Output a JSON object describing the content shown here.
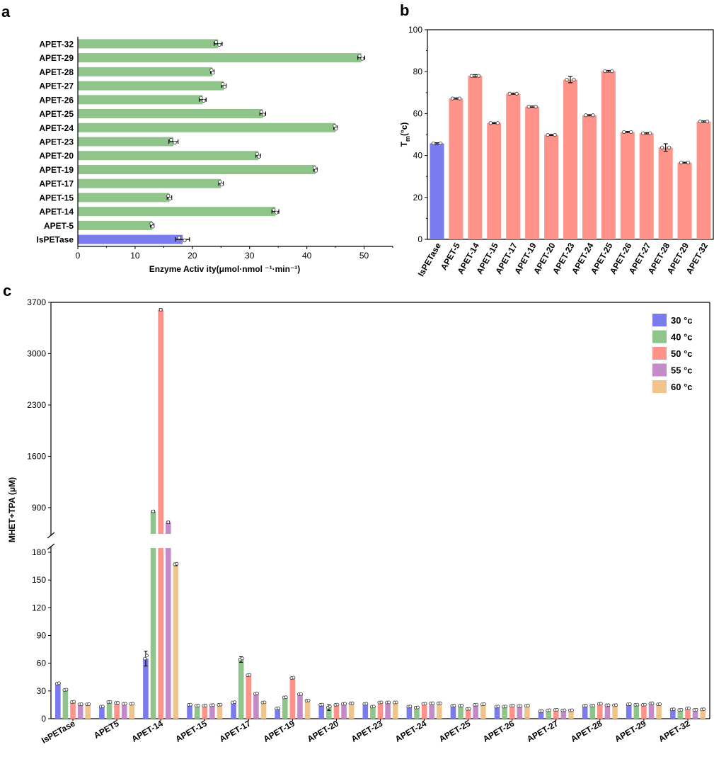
{
  "panels": {
    "a": "a",
    "b": "b",
    "c": "c"
  },
  "chart_data": [
    {
      "panel": "a",
      "type": "bar",
      "orientation": "horizontal",
      "title": "",
      "xlabel": "Enzyme Activ ity(μmol·nmol ⁻¹·min⁻¹)",
      "ylabel": "",
      "xlim": [
        0,
        55
      ],
      "xticks": [
        "0",
        "10",
        "20",
        "30",
        "40",
        "50"
      ],
      "categories": [
        "APET-32",
        "APET-29",
        "APET-28",
        "APET-27",
        "APET-26",
        "APET-25",
        "APET-24",
        "APET-23",
        "APET-20",
        "APET-19",
        "APET-17",
        "APET-15",
        "APET-14",
        "APET-5",
        "IsPETase"
      ],
      "values": [
        24.5,
        49.5,
        23.5,
        25.5,
        21.8,
        32.3,
        45.0,
        16.7,
        31.5,
        41.5,
        25.0,
        16.0,
        34.5,
        13.0,
        18.3
      ],
      "errors": [
        0.7,
        0.6,
        0.3,
        0.4,
        0.6,
        0.5,
        0.3,
        0.8,
        0.4,
        0.3,
        0.4,
        0.4,
        0.6,
        0.3,
        1.2
      ],
      "colors": [
        "#8fc48a",
        "#8fc48a",
        "#8fc48a",
        "#8fc48a",
        "#8fc48a",
        "#8fc48a",
        "#8fc48a",
        "#8fc48a",
        "#8fc48a",
        "#8fc48a",
        "#8fc48a",
        "#8fc48a",
        "#8fc48a",
        "#8fc48a",
        "#7b7bf0"
      ]
    },
    {
      "panel": "b",
      "type": "bar",
      "title": "",
      "ylabel": "T",
      "ylabel_sub": "m",
      "ylabel_unit": "(°c)",
      "ylim": [
        0,
        100
      ],
      "yticks": [
        "0",
        "20",
        "40",
        "60",
        "80",
        "100"
      ],
      "categories": [
        "IsPETase",
        "APET-5",
        "APET-14",
        "APET-15",
        "APET-17",
        "APET-19",
        "APET-20",
        "APET-23",
        "APET-24",
        "APET-25",
        "APET-26",
        "APET-27",
        "APET-28",
        "APET-29",
        "APET-32"
      ],
      "values": [
        45.8,
        67.2,
        78.0,
        55.5,
        69.5,
        63.3,
        49.8,
        76.2,
        59.2,
        80.2,
        51.2,
        50.6,
        43.8,
        36.6,
        56.2
      ],
      "errors": [
        0.3,
        0.3,
        0.6,
        0.3,
        0.3,
        0.3,
        0.3,
        1.5,
        0.3,
        0.4,
        0.3,
        0.3,
        1.8,
        0.2,
        0.3
      ],
      "colors": [
        "#7b7bf0",
        "#ff938a",
        "#ff938a",
        "#ff938a",
        "#ff938a",
        "#ff938a",
        "#ff938a",
        "#ff938a",
        "#ff938a",
        "#ff938a",
        "#ff938a",
        "#ff938a",
        "#ff938a",
        "#ff938a",
        "#ff938a"
      ]
    },
    {
      "panel": "c",
      "type": "bar",
      "title": "",
      "ylabel": "MHET+TPA (μM)",
      "broken_axis": true,
      "ylim_lower": [
        0,
        180
      ],
      "ylim_upper": [
        600,
        3700
      ],
      "yticks_lower": [
        "0",
        "30",
        "60",
        "90",
        "120",
        "150",
        "180"
      ],
      "yticks_upper": [
        "900",
        "1600",
        "2300",
        "3000",
        "3700"
      ],
      "categories": [
        "IsPETase",
        "APET5",
        "APET-14",
        "APET-15",
        "APET-17",
        "APET-19",
        "APET-20",
        "APET-23",
        "APET-24",
        "APET-25",
        "APET-26",
        "APET-27",
        "APET-28",
        "APET-29",
        "APET-32"
      ],
      "legend_position": "top-right",
      "series": [
        {
          "name": "30 °c",
          "color": "#7b7bf0",
          "values": [
            38,
            13,
            65,
            15,
            17.5,
            11,
            15,
            16,
            13,
            14,
            13,
            8,
            14,
            15.5,
            10
          ],
          "errors": [
            1,
            0.5,
            8,
            0.5,
            1,
            0.5,
            0.5,
            0.5,
            0.5,
            0.5,
            0.5,
            0.5,
            0.5,
            0.5,
            0.5
          ]
        },
        {
          "name": "40 °c",
          "color": "#8fc48a",
          "values": [
            31,
            18,
            850,
            14,
            64,
            23,
            12,
            13,
            12,
            14,
            13,
            9,
            14,
            15,
            9.5
          ],
          "errors": [
            1,
            0.5,
            5,
            0.5,
            3,
            0.5,
            3,
            0.5,
            0.5,
            0.5,
            0.5,
            0.5,
            0.5,
            0.5,
            0.5
          ]
        },
        {
          "name": "50 °c",
          "color": "#ff938a",
          "values": [
            18,
            17,
            3600,
            14,
            47,
            44,
            15,
            17.5,
            16,
            10.5,
            14,
            9.5,
            16,
            15,
            11
          ],
          "errors": [
            1,
            0.5,
            10,
            0.5,
            1,
            1,
            0.5,
            0.5,
            0.5,
            0.5,
            0.5,
            0.5,
            0.5,
            0.5,
            0.5
          ]
        },
        {
          "name": "55 °c",
          "color": "#c58ac8",
          "values": [
            15.5,
            16,
            700,
            14.5,
            27,
            26.5,
            16,
            17.5,
            16.5,
            15,
            13.5,
            9,
            14.5,
            16.5,
            9.5
          ],
          "errors": [
            0.5,
            0.5,
            5,
            0.5,
            1,
            0.5,
            0.5,
            0.5,
            0.5,
            0.5,
            0.5,
            0.5,
            0.5,
            0.5,
            0.5
          ]
        },
        {
          "name": "60 °c",
          "color": "#f0c48a",
          "values": [
            15.5,
            16,
            167,
            15,
            17.5,
            19.5,
            16.5,
            17.5,
            16.5,
            15.5,
            14,
            9,
            14.5,
            15.5,
            10
          ],
          "errors": [
            0.5,
            0.5,
            1.5,
            0.5,
            0.5,
            0.5,
            0.5,
            0.5,
            0.5,
            0.5,
            0.5,
            0.5,
            0.5,
            0.5,
            0.5
          ]
        }
      ]
    }
  ]
}
